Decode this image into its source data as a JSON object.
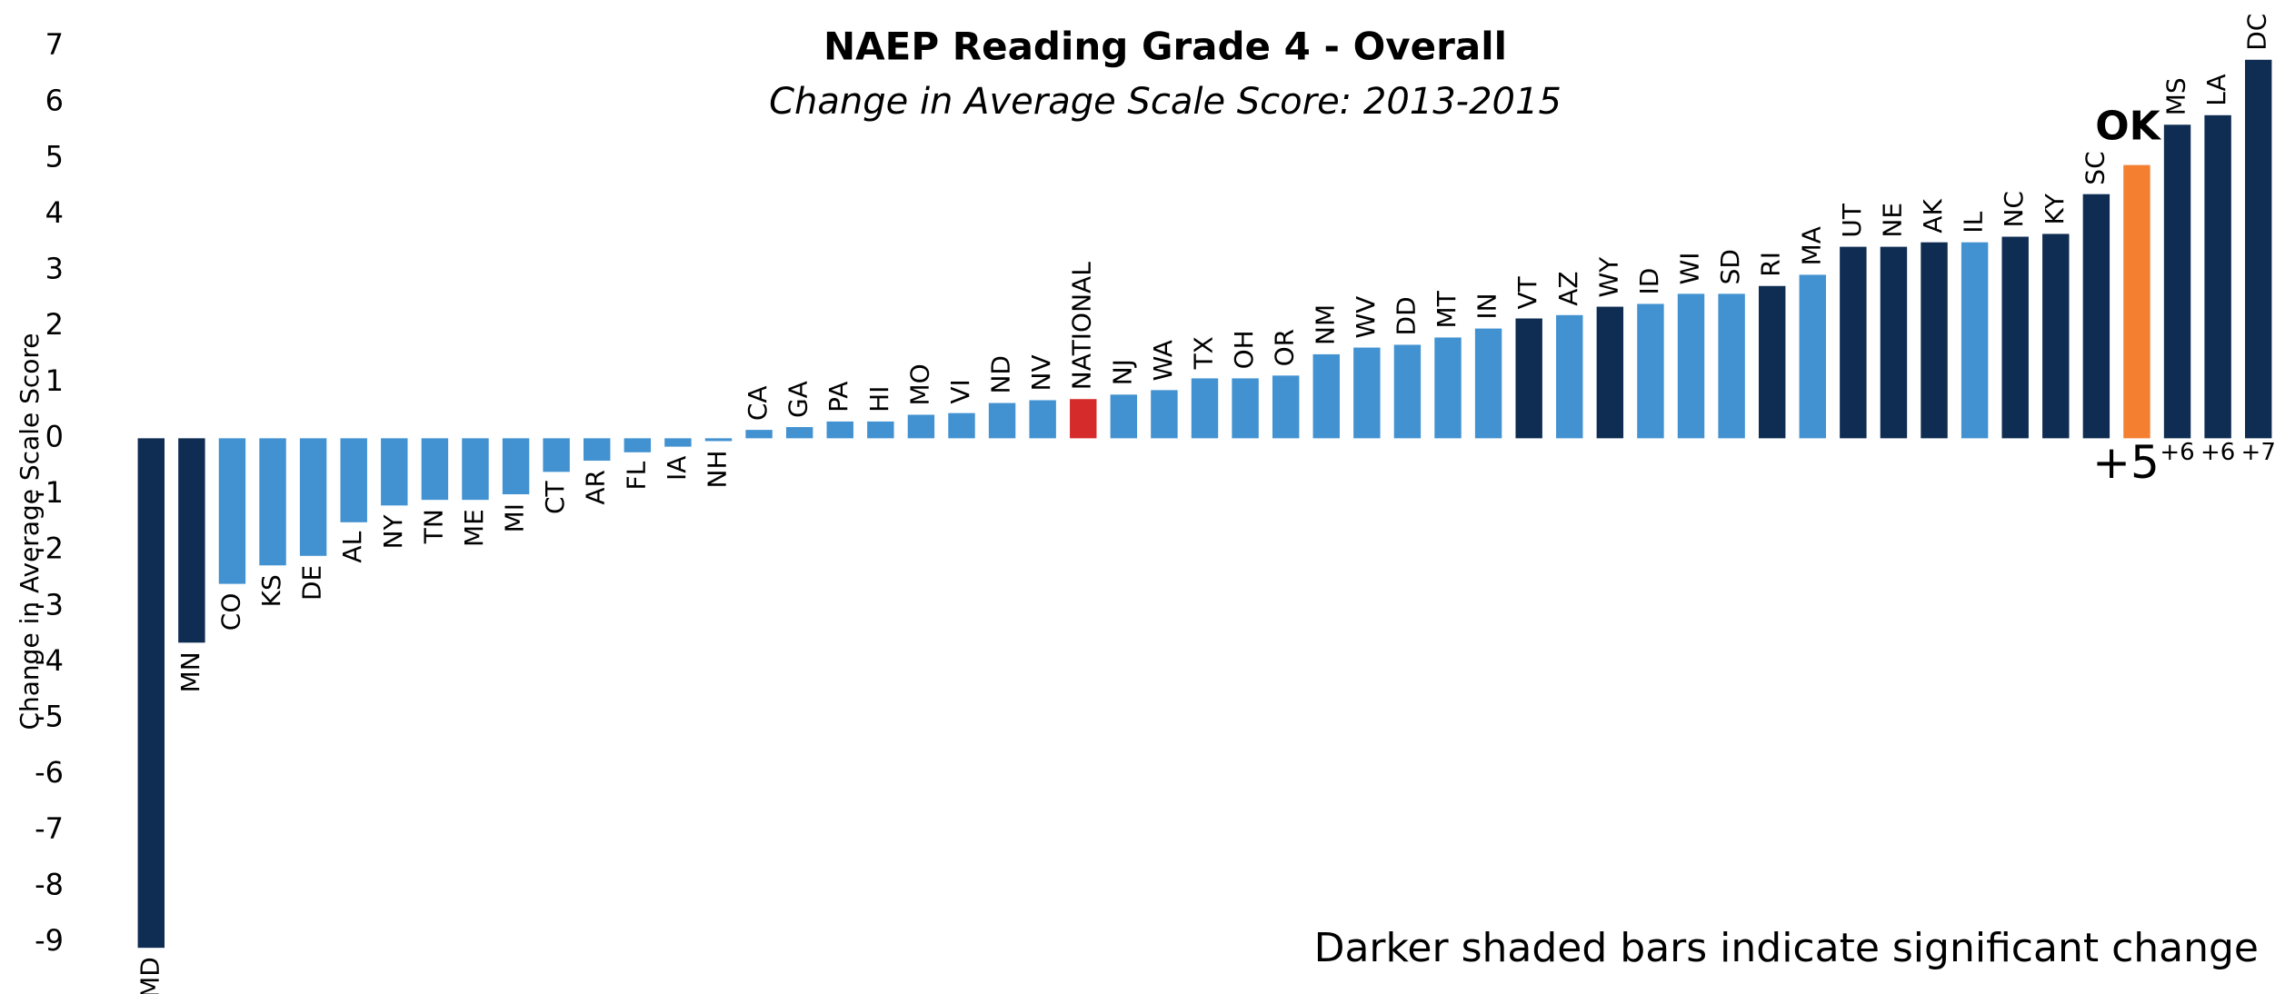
{
  "chart_data": {
    "type": "bar",
    "title": "NAEP Reading Grade 4 - Overall",
    "subtitle": "Change in Average Scale Score: 2013-2015",
    "y_label": "Change in Average Scale Score",
    "note": "Darker shaded bars indicate significant change",
    "categories": [
      "MD",
      "MN",
      "CO",
      "KS",
      "DE",
      "AL",
      "NY",
      "TN",
      "ME",
      "MI",
      "CT",
      "AR",
      "FL",
      "IA",
      "NH",
      "CA",
      "GA",
      "PA",
      "HI",
      "MO",
      "VI",
      "ND",
      "NV",
      "NATIONAL",
      "NJ",
      "WA",
      "TX",
      "OH",
      "OR",
      "NM",
      "WV",
      "DD",
      "MT",
      "IN",
      "VT",
      "AZ",
      "WY",
      "ID",
      "WI",
      "SD",
      "RI",
      "MA",
      "UT",
      "NE",
      "AK",
      "IL",
      "NC",
      "KY",
      "SC",
      "OK",
      "MS",
      "LA",
      "DC"
    ],
    "values": [
      -9.1,
      -3.65,
      -2.6,
      -2.27,
      -2.1,
      -1.5,
      -1.2,
      -1.1,
      -1.1,
      -1.0,
      -0.6,
      -0.4,
      -0.25,
      -0.15,
      -0.05,
      0.15,
      0.2,
      0.3,
      0.3,
      0.42,
      0.45,
      0.63,
      0.68,
      0.7,
      0.78,
      0.86,
      1.07,
      1.07,
      1.12,
      1.5,
      1.62,
      1.67,
      1.8,
      1.96,
      2.14,
      2.2,
      2.35,
      2.4,
      2.58,
      2.58,
      2.72,
      2.92,
      3.42,
      3.42,
      3.5,
      3.5,
      3.6,
      3.65,
      4.36,
      4.88,
      5.6,
      5.77,
      6.76
    ],
    "value_labels": [
      null,
      null,
      null,
      null,
      null,
      null,
      null,
      null,
      null,
      null,
      null,
      null,
      null,
      null,
      null,
      null,
      null,
      null,
      null,
      null,
      null,
      null,
      null,
      null,
      null,
      null,
      null,
      null,
      null,
      null,
      null,
      null,
      null,
      null,
      null,
      null,
      null,
      null,
      null,
      null,
      null,
      null,
      null,
      null,
      null,
      null,
      null,
      null,
      null,
      "+5",
      "+6",
      "+6",
      "+7"
    ],
    "colors": [
      "#0f2d52",
      "#0f2d52",
      "#4292d1",
      "#4292d1",
      "#4292d1",
      "#4292d1",
      "#4292d1",
      "#4292d1",
      "#4292d1",
      "#4292d1",
      "#4292d1",
      "#4292d1",
      "#4292d1",
      "#4292d1",
      "#4292d1",
      "#4292d1",
      "#4292d1",
      "#4292d1",
      "#4292d1",
      "#4292d1",
      "#4292d1",
      "#4292d1",
      "#4292d1",
      "#d62b2b",
      "#4292d1",
      "#4292d1",
      "#4292d1",
      "#4292d1",
      "#4292d1",
      "#4292d1",
      "#4292d1",
      "#4292d1",
      "#4292d1",
      "#4292d1",
      "#0f2d52",
      "#4292d1",
      "#0f2d52",
      "#4292d1",
      "#4292d1",
      "#4292d1",
      "#0f2d52",
      "#4292d1",
      "#0f2d52",
      "#0f2d52",
      "#0f2d52",
      "#4292d1",
      "#0f2d52",
      "#0f2d52",
      "#0f2d52",
      "#f47f31",
      "#0f2d52",
      "#0f2d52",
      "#0f2d52"
    ],
    "highlight_color": "#f47f31",
    "ylim": [
      -9,
      7
    ],
    "yticks": [
      -9,
      -8,
      -7,
      -6,
      -5,
      -4,
      -3,
      -2,
      -1,
      0,
      1,
      2,
      3,
      4,
      5,
      6,
      7
    ],
    "grid": false
  }
}
